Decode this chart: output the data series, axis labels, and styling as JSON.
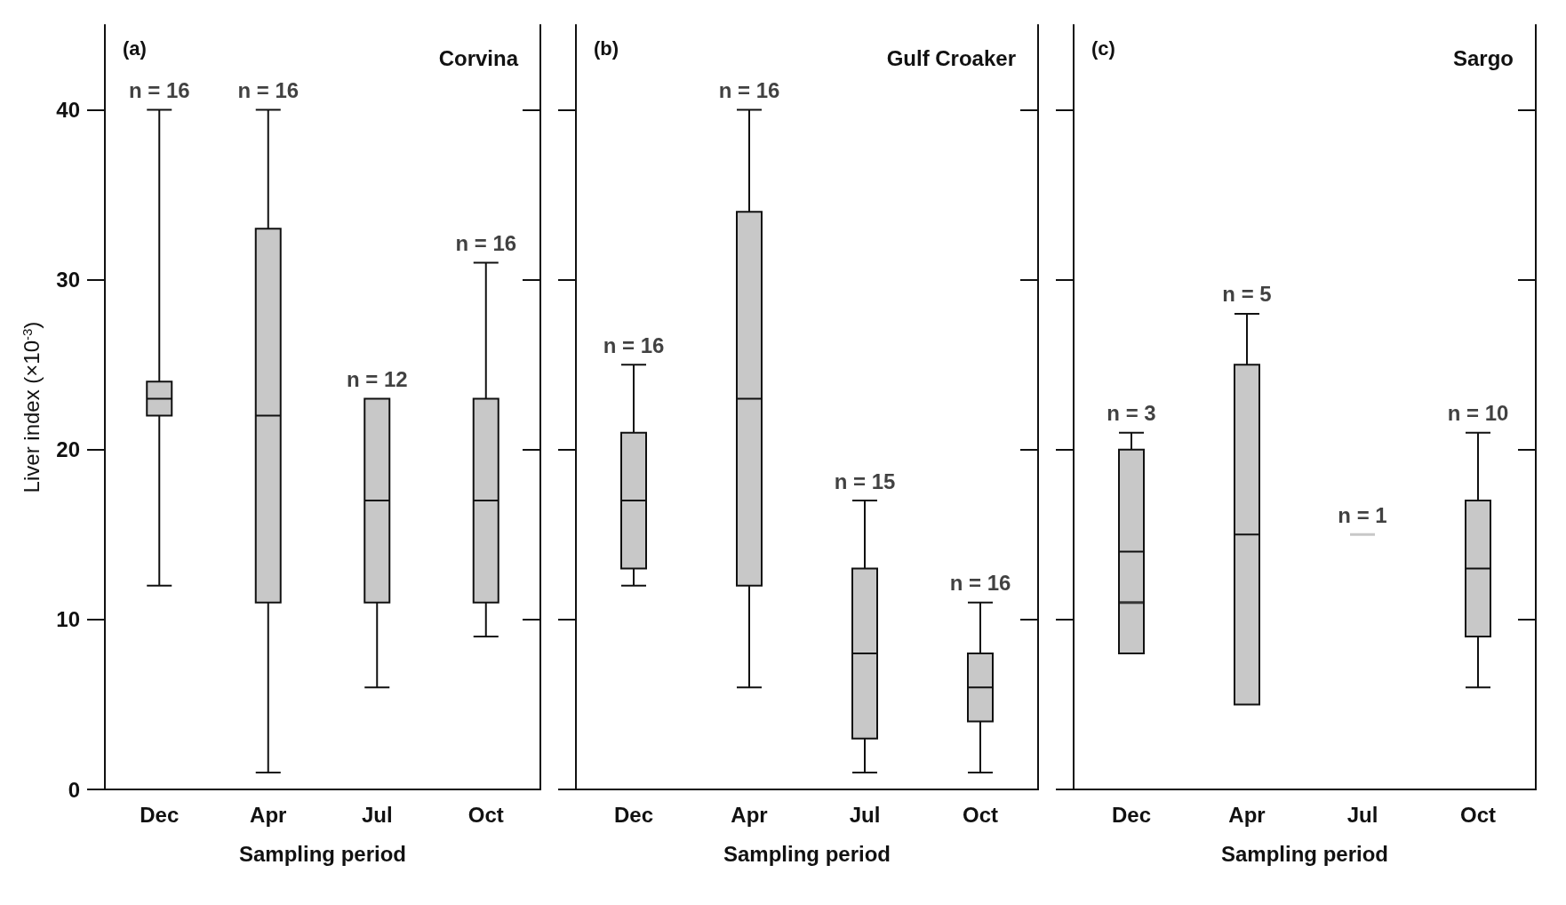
{
  "chart_data": [
    {
      "type": "box",
      "title": "Corvina",
      "xlabel": "Sampling period",
      "ylabel": "Liver index (×10$^{-3}$)",
      "categories": [
        "Dec",
        "Apr",
        "Jul",
        "Oct"
      ],
      "color": "#c8c8c8",
      "ylim": [
        0,
        45
      ],
      "yticks": [
        0,
        10,
        20,
        30,
        40
      ],
      "grid": false,
      "boxes": [
        {
          "low": 12,
          "q1": 22,
          "median": 23,
          "q3": 24,
          "high": 40
        },
        {
          "low": 1,
          "q1": 11,
          "median": 22,
          "q3": 33,
          "high": 40
        },
        {
          "low": 6,
          "q1": 11,
          "median": 17,
          "q3": 23,
          "high": 23
        },
        {
          "low": 9,
          "q1": 11,
          "median": 17,
          "q3": 23,
          "high": 31
        }
      ],
      "annotations": [
        "(a)",
        {
          "text": "n = 16",
          "x": "Dec",
          "y": 40
        },
        {
          "text": "n = 16",
          "x": "Apr",
          "y": 40
        },
        {
          "text": "n = 12",
          "x": "Jul",
          "y": 23
        },
        {
          "text": "n = 16",
          "x": "Oct",
          "y": 31
        }
      ]
    },
    {
      "type": "box",
      "title": "Gulf Croaker",
      "xlabel": "Sampling period",
      "categories": [
        "Dec",
        "Apr",
        "Jul",
        "Oct"
      ],
      "color": "#c8c8c8",
      "ylim": [
        0,
        45
      ],
      "yticks": [
        0,
        10,
        20,
        30,
        40
      ],
      "grid": false,
      "tick_labels": "x",
      "boxes": [
        {
          "low": 12,
          "q1": 13,
          "median": 17,
          "q3": 21,
          "high": 25
        },
        {
          "low": 6,
          "q1": 12,
          "median": 23,
          "q3": 34,
          "high": 40
        },
        {
          "low": 1,
          "q1": 3,
          "median": 8,
          "q3": 13,
          "high": 17
        },
        {
          "low": 1,
          "q1": 4,
          "median": 6,
          "q3": 8,
          "high": 11
        }
      ],
      "annotations": [
        "(b)",
        {
          "text": "n = 16",
          "x": "Dec",
          "y": 25
        },
        {
          "text": "n = 16",
          "x": "Apr",
          "y": 40
        },
        {
          "text": "n = 15",
          "x": "Jul",
          "y": 17
        },
        {
          "text": "n = 16",
          "x": "Oct",
          "y": 11
        }
      ]
    },
    {
      "type": "box",
      "title": "Sargo",
      "xlabel": "Sampling period",
      "categories": [
        "Dec",
        "Apr",
        "Jul",
        "Oct"
      ],
      "color": "#c8c8c8",
      "ylim": [
        0,
        45
      ],
      "yticks": [
        0,
        10,
        20,
        30,
        40
      ],
      "grid": false,
      "tick_labels": "x",
      "boxes": [
        {
          "low": 8,
          "q1": 8,
          "median": 14,
          "q3": 20,
          "high": 21,
          "mean": 11
        },
        {
          "low": 5,
          "q1": 5,
          "median": 15,
          "q3": 25,
          "high": 28
        },
        {
          "low": 15,
          "q1": 15,
          "median": 15,
          "q3": 15,
          "high": 15
        },
        {
          "low": 6,
          "q1": 9,
          "median": 13,
          "q3": 17,
          "high": 21
        }
      ],
      "annotations": [
        "(c)",
        {
          "text": "n = 3",
          "x": "Dec",
          "y": 21
        },
        {
          "text": "n = 5",
          "x": "Apr",
          "y": 28
        },
        {
          "text": "n = 1",
          "x": "Jul",
          "y": 15
        },
        {
          "text": "n = 10",
          "x": "Oct",
          "y": 21
        }
      ]
    }
  ]
}
